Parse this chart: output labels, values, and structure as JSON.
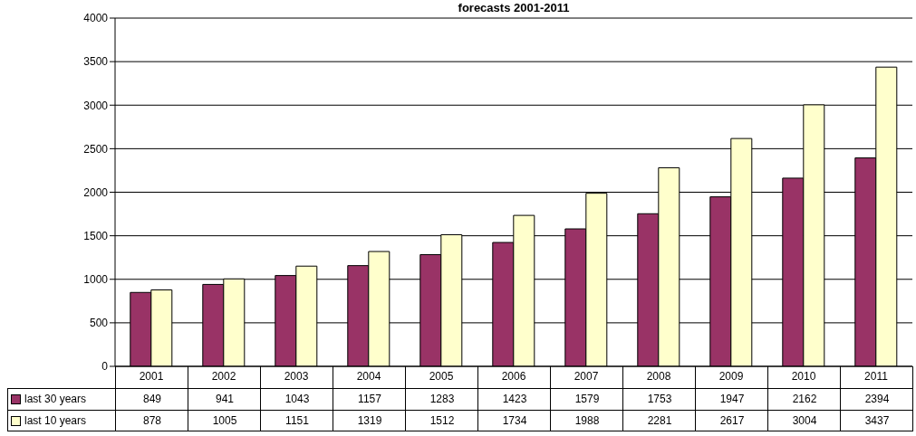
{
  "chart_data": {
    "type": "bar",
    "title": "forecasts 2001-2011",
    "categories": [
      "2001",
      "2002",
      "2003",
      "2004",
      "2005",
      "2006",
      "2007",
      "2008",
      "2009",
      "2010",
      "2011"
    ],
    "series": [
      {
        "name": "last 30 years",
        "color": "#993366",
        "values": [
          849,
          941,
          1043,
          1157,
          1283,
          1423,
          1579,
          1753,
          1947,
          2162,
          2394
        ]
      },
      {
        "name": "last 10 years",
        "color": "#ffffcc",
        "values": [
          878,
          1005,
          1151,
          1319,
          1512,
          1734,
          1988,
          2281,
          2617,
          3004,
          3437
        ]
      }
    ],
    "ylim": [
      0,
      4000
    ],
    "yticks": [
      0,
      500,
      1000,
      1500,
      2000,
      2500,
      3000,
      3500,
      4000
    ],
    "grid": "y",
    "legend": "bottom",
    "data_labels": true
  }
}
